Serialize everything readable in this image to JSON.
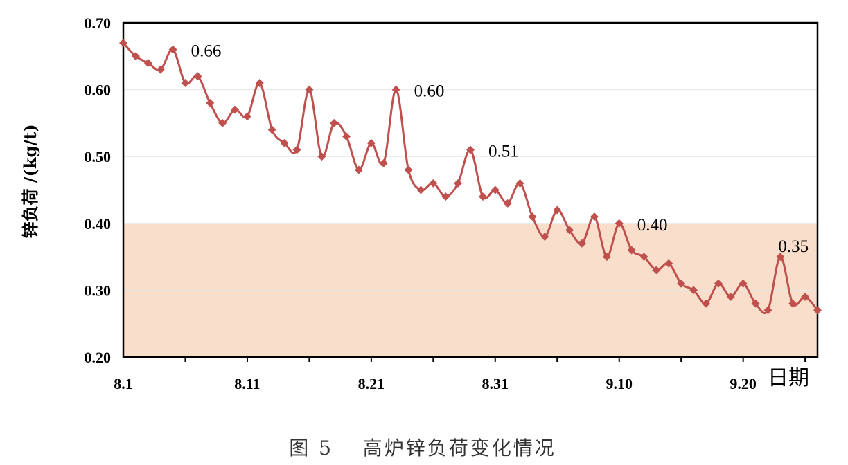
{
  "chart_data": {
    "type": "line",
    "caption": "图 5　 高炉锌负荷变化情况",
    "ylabel": "锌负荷  /(kg/t)",
    "xlabel": "日期",
    "ylim": [
      0.2,
      0.7
    ],
    "yticks": [
      "0.20",
      "0.30",
      "0.40",
      "0.50",
      "0.60",
      "0.70"
    ],
    "xticks": [
      {
        "label": "8.1",
        "index": 0
      },
      {
        "label": "8.11",
        "index": 10
      },
      {
        "label": "8.21",
        "index": 20
      },
      {
        "label": "8.31",
        "index": 30
      },
      {
        "label": "9.10",
        "index": 40
      },
      {
        "label": "9.20",
        "index": 50
      }
    ],
    "highlight_band": {
      "from": 0.2,
      "to": 0.4,
      "color": "#f9dfcb"
    },
    "line_color": "#c0504d",
    "grid": true,
    "values": [
      0.67,
      0.65,
      0.64,
      0.63,
      0.66,
      0.61,
      0.62,
      0.58,
      0.55,
      0.57,
      0.56,
      0.61,
      0.54,
      0.52,
      0.51,
      0.6,
      0.5,
      0.55,
      0.53,
      0.48,
      0.52,
      0.49,
      0.6,
      0.48,
      0.45,
      0.46,
      0.44,
      0.46,
      0.51,
      0.44,
      0.45,
      0.43,
      0.46,
      0.41,
      0.38,
      0.42,
      0.39,
      0.37,
      0.41,
      0.35,
      0.4,
      0.36,
      0.35,
      0.33,
      0.34,
      0.31,
      0.3,
      0.28,
      0.31,
      0.29,
      0.31,
      0.28,
      0.27,
      0.35,
      0.28,
      0.29,
      0.27
    ],
    "annotations": [
      {
        "text": "0.66",
        "index": 4
      },
      {
        "text": "0.60",
        "index": 22
      },
      {
        "text": "0.51",
        "index": 28
      },
      {
        "text": "0.40",
        "index": 40
      },
      {
        "text": "0.35",
        "index": 53
      }
    ]
  }
}
